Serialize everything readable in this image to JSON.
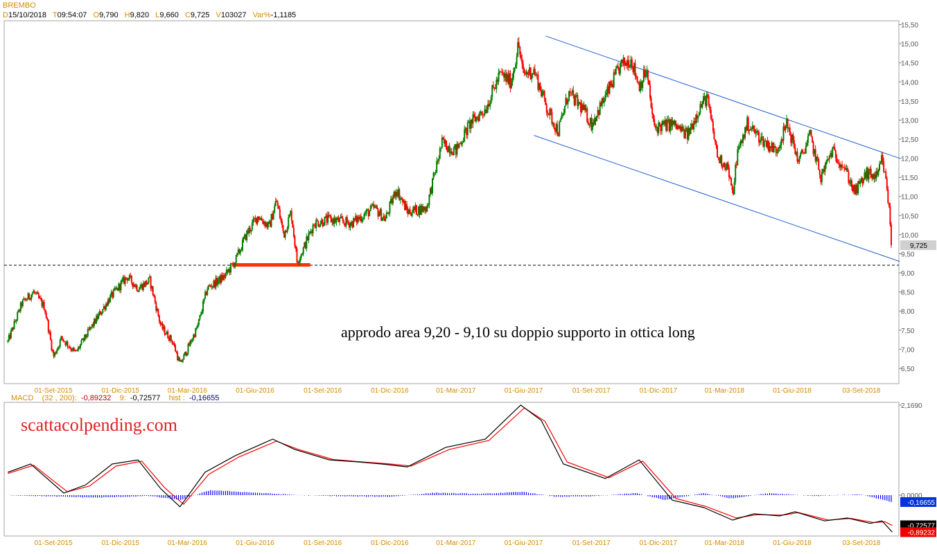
{
  "header": {
    "title": "BREMBO",
    "quote": [
      {
        "key": "D",
        "value": "15/10/2018"
      },
      {
        "key": "T",
        "value": "09:54:07"
      },
      {
        "key": "O",
        "value": "9,790"
      },
      {
        "key": "H",
        "value": "9,820"
      },
      {
        "key": "L",
        "value": "9,660"
      },
      {
        "key": "C",
        "value": "9,725"
      },
      {
        "key": "V",
        "value": "103027"
      },
      {
        "key": "Var%",
        "value": "-1,1185"
      }
    ]
  },
  "macd_header": {
    "name": "MACD",
    "params": "(32 , 200)",
    "macd_value": "-0,89232",
    "signal_period": "9",
    "signal_value": "-0,72577",
    "hist_label": "hist",
    "hist_value": "-0,16655"
  },
  "annotation": "approdo area 9,20 - 9,10 su doppio supporto in ottica long",
  "watermark": "scattacolpending.com",
  "colors": {
    "up": "#008000",
    "down": "#ff0000",
    "channel": "#1f5fd0",
    "support": "#ff3300",
    "macd": "#000000",
    "signal": "#ff0000",
    "hist": "#0000ff",
    "label": "#d58a00"
  },
  "chart_data": [
    {
      "type": "candlestick",
      "title": "BREMBO",
      "x_ticks": [
        "01-Set-2015",
        "01-Dic-2015",
        "01-Mar-2016",
        "01-Giu-2016",
        "01-Set-2016",
        "01-Dic-2016",
        "01-Mar-2017",
        "01-Giu-2017",
        "01-Set-2017",
        "01-Dic-2017",
        "01-Mar-2018",
        "01-Giu-2018",
        "03-Set-2018"
      ],
      "y_ticks": [
        "6,50",
        "7,00",
        "7,50",
        "8,00",
        "8,50",
        "9,00",
        "9,50",
        "10,00",
        "10,50",
        "11,00",
        "11,50",
        "12,00",
        "12,50",
        "13,00",
        "13,50",
        "14,00",
        "14,50",
        "15,00",
        "15,50"
      ],
      "ylim": [
        6.1,
        15.6
      ],
      "last_price_label": "9,725",
      "last_price": 9.725,
      "support_level": 9.2,
      "support_zone": [
        "2016-05-01",
        "2016-08-15"
      ],
      "channel": {
        "upper": [
          [
            "2017-07-01",
            15.2
          ],
          [
            "2018-10-25",
            12.0
          ]
        ],
        "lower": [
          [
            "2017-06-15",
            12.6
          ],
          [
            "2018-10-25",
            9.3
          ]
        ]
      },
      "price_path": [
        [
          "2015-07-01",
          7.2
        ],
        [
          "2015-07-20",
          8.2
        ],
        [
          "2015-08-05",
          8.5
        ],
        [
          "2015-08-20",
          8.1
        ],
        [
          "2015-09-01",
          6.8
        ],
        [
          "2015-09-12",
          7.3
        ],
        [
          "2015-10-01",
          6.9
        ],
        [
          "2015-10-20",
          7.5
        ],
        [
          "2015-11-15",
          8.3
        ],
        [
          "2015-12-10",
          8.9
        ],
        [
          "2015-12-25",
          8.6
        ],
        [
          "2016-01-10",
          8.8
        ],
        [
          "2016-01-25",
          7.6
        ],
        [
          "2016-02-10",
          7.2
        ],
        [
          "2016-02-20",
          6.6
        ],
        [
          "2016-03-01",
          7.0
        ],
        [
          "2016-03-15",
          7.6
        ],
        [
          "2016-03-28",
          8.6
        ],
        [
          "2016-04-20",
          8.9
        ],
        [
          "2016-05-05",
          9.3
        ],
        [
          "2016-05-20",
          10.0
        ],
        [
          "2016-06-05",
          10.5
        ],
        [
          "2016-06-20",
          10.2
        ],
        [
          "2016-06-30",
          10.9
        ],
        [
          "2016-07-10",
          10.0
        ],
        [
          "2016-07-20",
          10.6
        ],
        [
          "2016-07-28",
          9.3
        ],
        [
          "2016-08-05",
          9.6
        ],
        [
          "2016-08-20",
          10.3
        ],
        [
          "2016-09-10",
          10.4
        ],
        [
          "2016-10-10",
          10.3
        ],
        [
          "2016-11-10",
          10.7
        ],
        [
          "2016-11-25",
          10.4
        ],
        [
          "2016-12-10",
          11.2
        ],
        [
          "2016-12-25",
          10.6
        ],
        [
          "2017-01-20",
          10.7
        ],
        [
          "2017-02-10",
          12.4
        ],
        [
          "2017-03-01",
          12.2
        ],
        [
          "2017-03-20",
          12.9
        ],
        [
          "2017-04-10",
          13.3
        ],
        [
          "2017-04-30",
          14.2
        ],
        [
          "2017-05-15",
          14.0
        ],
        [
          "2017-05-25",
          15.0
        ],
        [
          "2017-05-31",
          14.2
        ],
        [
          "2017-06-15",
          14.3
        ],
        [
          "2017-07-05",
          13.2
        ],
        [
          "2017-07-18",
          12.7
        ],
        [
          "2017-08-01",
          13.7
        ],
        [
          "2017-08-20",
          13.3
        ],
        [
          "2017-09-01",
          12.9
        ],
        [
          "2017-09-20",
          13.6
        ],
        [
          "2017-10-10",
          14.4
        ],
        [
          "2017-10-25",
          14.6
        ],
        [
          "2017-11-05",
          13.9
        ],
        [
          "2017-11-15",
          14.3
        ],
        [
          "2017-11-25",
          12.8
        ],
        [
          "2017-12-20",
          12.9
        ],
        [
          "2018-01-10",
          12.6
        ],
        [
          "2018-01-25",
          13.3
        ],
        [
          "2018-02-05",
          13.6
        ],
        [
          "2018-02-20",
          12.0
        ],
        [
          "2018-03-05",
          11.8
        ],
        [
          "2018-03-12",
          11.0
        ],
        [
          "2018-03-18",
          12.1
        ],
        [
          "2018-04-01",
          12.9
        ],
        [
          "2018-04-20",
          12.5
        ],
        [
          "2018-05-10",
          12.2
        ],
        [
          "2018-05-25",
          12.9
        ],
        [
          "2018-06-10",
          11.9
        ],
        [
          "2018-06-25",
          12.6
        ],
        [
          "2018-07-10",
          11.5
        ],
        [
          "2018-07-25",
          12.2
        ],
        [
          "2018-08-10",
          11.8
        ],
        [
          "2018-08-25",
          11.1
        ],
        [
          "2018-09-10",
          11.6
        ],
        [
          "2018-09-25",
          11.5
        ],
        [
          "2018-10-01",
          12.0
        ],
        [
          "2018-10-08",
          11.2
        ],
        [
          "2018-10-15",
          9.725
        ]
      ]
    },
    {
      "type": "line",
      "title": "MACD",
      "y_ticks": [
        "2,1690",
        "0,0000"
      ],
      "value_labels": [
        "-0,16655",
        "-0,72577",
        "-0,89232"
      ],
      "series": [
        {
          "name": "MACD",
          "values": [
            [
              "2015-07-01",
              0.55
            ],
            [
              "2015-08-01",
              0.75
            ],
            [
              "2015-09-15",
              0.05
            ],
            [
              "2015-10-15",
              0.25
            ],
            [
              "2015-11-20",
              0.75
            ],
            [
              "2015-12-25",
              0.85
            ],
            [
              "2016-01-25",
              0.15
            ],
            [
              "2016-02-20",
              -0.28
            ],
            [
              "2016-03-25",
              0.55
            ],
            [
              "2016-05-05",
              0.95
            ],
            [
              "2016-06-25",
              1.35
            ],
            [
              "2016-07-25",
              1.1
            ],
            [
              "2016-09-10",
              0.85
            ],
            [
              "2016-10-20",
              0.8
            ],
            [
              "2016-11-20",
              0.75
            ],
            [
              "2016-12-25",
              0.68
            ],
            [
              "2017-02-15",
              1.15
            ],
            [
              "2017-04-10",
              1.35
            ],
            [
              "2017-05-28",
              2.17
            ],
            [
              "2017-06-25",
              1.8
            ],
            [
              "2017-07-25",
              0.75
            ],
            [
              "2017-09-20",
              0.4
            ],
            [
              "2017-11-05",
              0.85
            ],
            [
              "2017-12-20",
              -0.12
            ],
            [
              "2018-02-01",
              -0.3
            ],
            [
              "2018-03-12",
              -0.6
            ],
            [
              "2018-04-10",
              -0.45
            ],
            [
              "2018-05-15",
              -0.5
            ],
            [
              "2018-06-05",
              -0.4
            ],
            [
              "2018-07-15",
              -0.62
            ],
            [
              "2018-08-15",
              -0.55
            ],
            [
              "2018-09-15",
              -0.68
            ],
            [
              "2018-10-01",
              -0.62
            ],
            [
              "2018-10-15",
              -0.89
            ]
          ]
        },
        {
          "name": "Signal",
          "values": [
            [
              "2015-07-01",
              0.52
            ],
            [
              "2015-08-05",
              0.72
            ],
            [
              "2015-09-20",
              0.08
            ],
            [
              "2015-10-20",
              0.22
            ],
            [
              "2015-11-25",
              0.7
            ],
            [
              "2015-12-30",
              0.82
            ],
            [
              "2016-01-30",
              0.18
            ],
            [
              "2016-02-25",
              -0.22
            ],
            [
              "2016-03-30",
              0.5
            ],
            [
              "2016-05-10",
              0.92
            ],
            [
              "2016-06-30",
              1.3
            ],
            [
              "2016-07-30",
              1.1
            ],
            [
              "2016-09-15",
              0.86
            ],
            [
              "2016-10-25",
              0.8
            ],
            [
              "2016-11-25",
              0.76
            ],
            [
              "2016-12-30",
              0.7
            ],
            [
              "2017-02-20",
              1.1
            ],
            [
              "2017-04-15",
              1.32
            ],
            [
              "2017-06-02",
              2.1
            ],
            [
              "2017-06-30",
              1.78
            ],
            [
              "2017-07-30",
              0.8
            ],
            [
              "2017-09-25",
              0.42
            ],
            [
              "2017-11-10",
              0.82
            ],
            [
              "2017-12-25",
              -0.08
            ],
            [
              "2018-02-05",
              -0.28
            ],
            [
              "2018-03-17",
              -0.55
            ],
            [
              "2018-04-15",
              -0.47
            ],
            [
              "2018-05-20",
              -0.48
            ],
            [
              "2018-06-10",
              -0.42
            ],
            [
              "2018-07-20",
              -0.6
            ],
            [
              "2018-08-20",
              -0.56
            ],
            [
              "2018-09-20",
              -0.66
            ],
            [
              "2018-10-05",
              -0.64
            ],
            [
              "2018-10-15",
              -0.73
            ]
          ]
        },
        {
          "name": "hist",
          "values": [
            [
              "2015-07-01",
              0.0
            ],
            [
              "2015-09-15",
              -0.04
            ],
            [
              "2015-11-01",
              -0.06
            ],
            [
              "2016-01-10",
              -0.02
            ],
            [
              "2016-02-20",
              -0.12
            ],
            [
              "2016-04-01",
              0.12
            ],
            [
              "2016-06-01",
              0.06
            ],
            [
              "2016-08-01",
              0.0
            ],
            [
              "2016-10-01",
              -0.03
            ],
            [
              "2016-12-01",
              -0.04
            ],
            [
              "2017-02-01",
              0.06
            ],
            [
              "2017-04-01",
              0.03
            ],
            [
              "2017-06-01",
              0.08
            ],
            [
              "2017-07-15",
              -0.04
            ],
            [
              "2017-09-01",
              -0.03
            ],
            [
              "2017-11-01",
              0.05
            ],
            [
              "2017-12-10",
              -0.12
            ],
            [
              "2018-02-01",
              0.05
            ],
            [
              "2018-03-10",
              -0.08
            ],
            [
              "2018-05-01",
              0.05
            ],
            [
              "2018-07-01",
              -0.02
            ],
            [
              "2018-09-01",
              0.02
            ],
            [
              "2018-10-15",
              -0.17
            ]
          ]
        }
      ]
    }
  ]
}
